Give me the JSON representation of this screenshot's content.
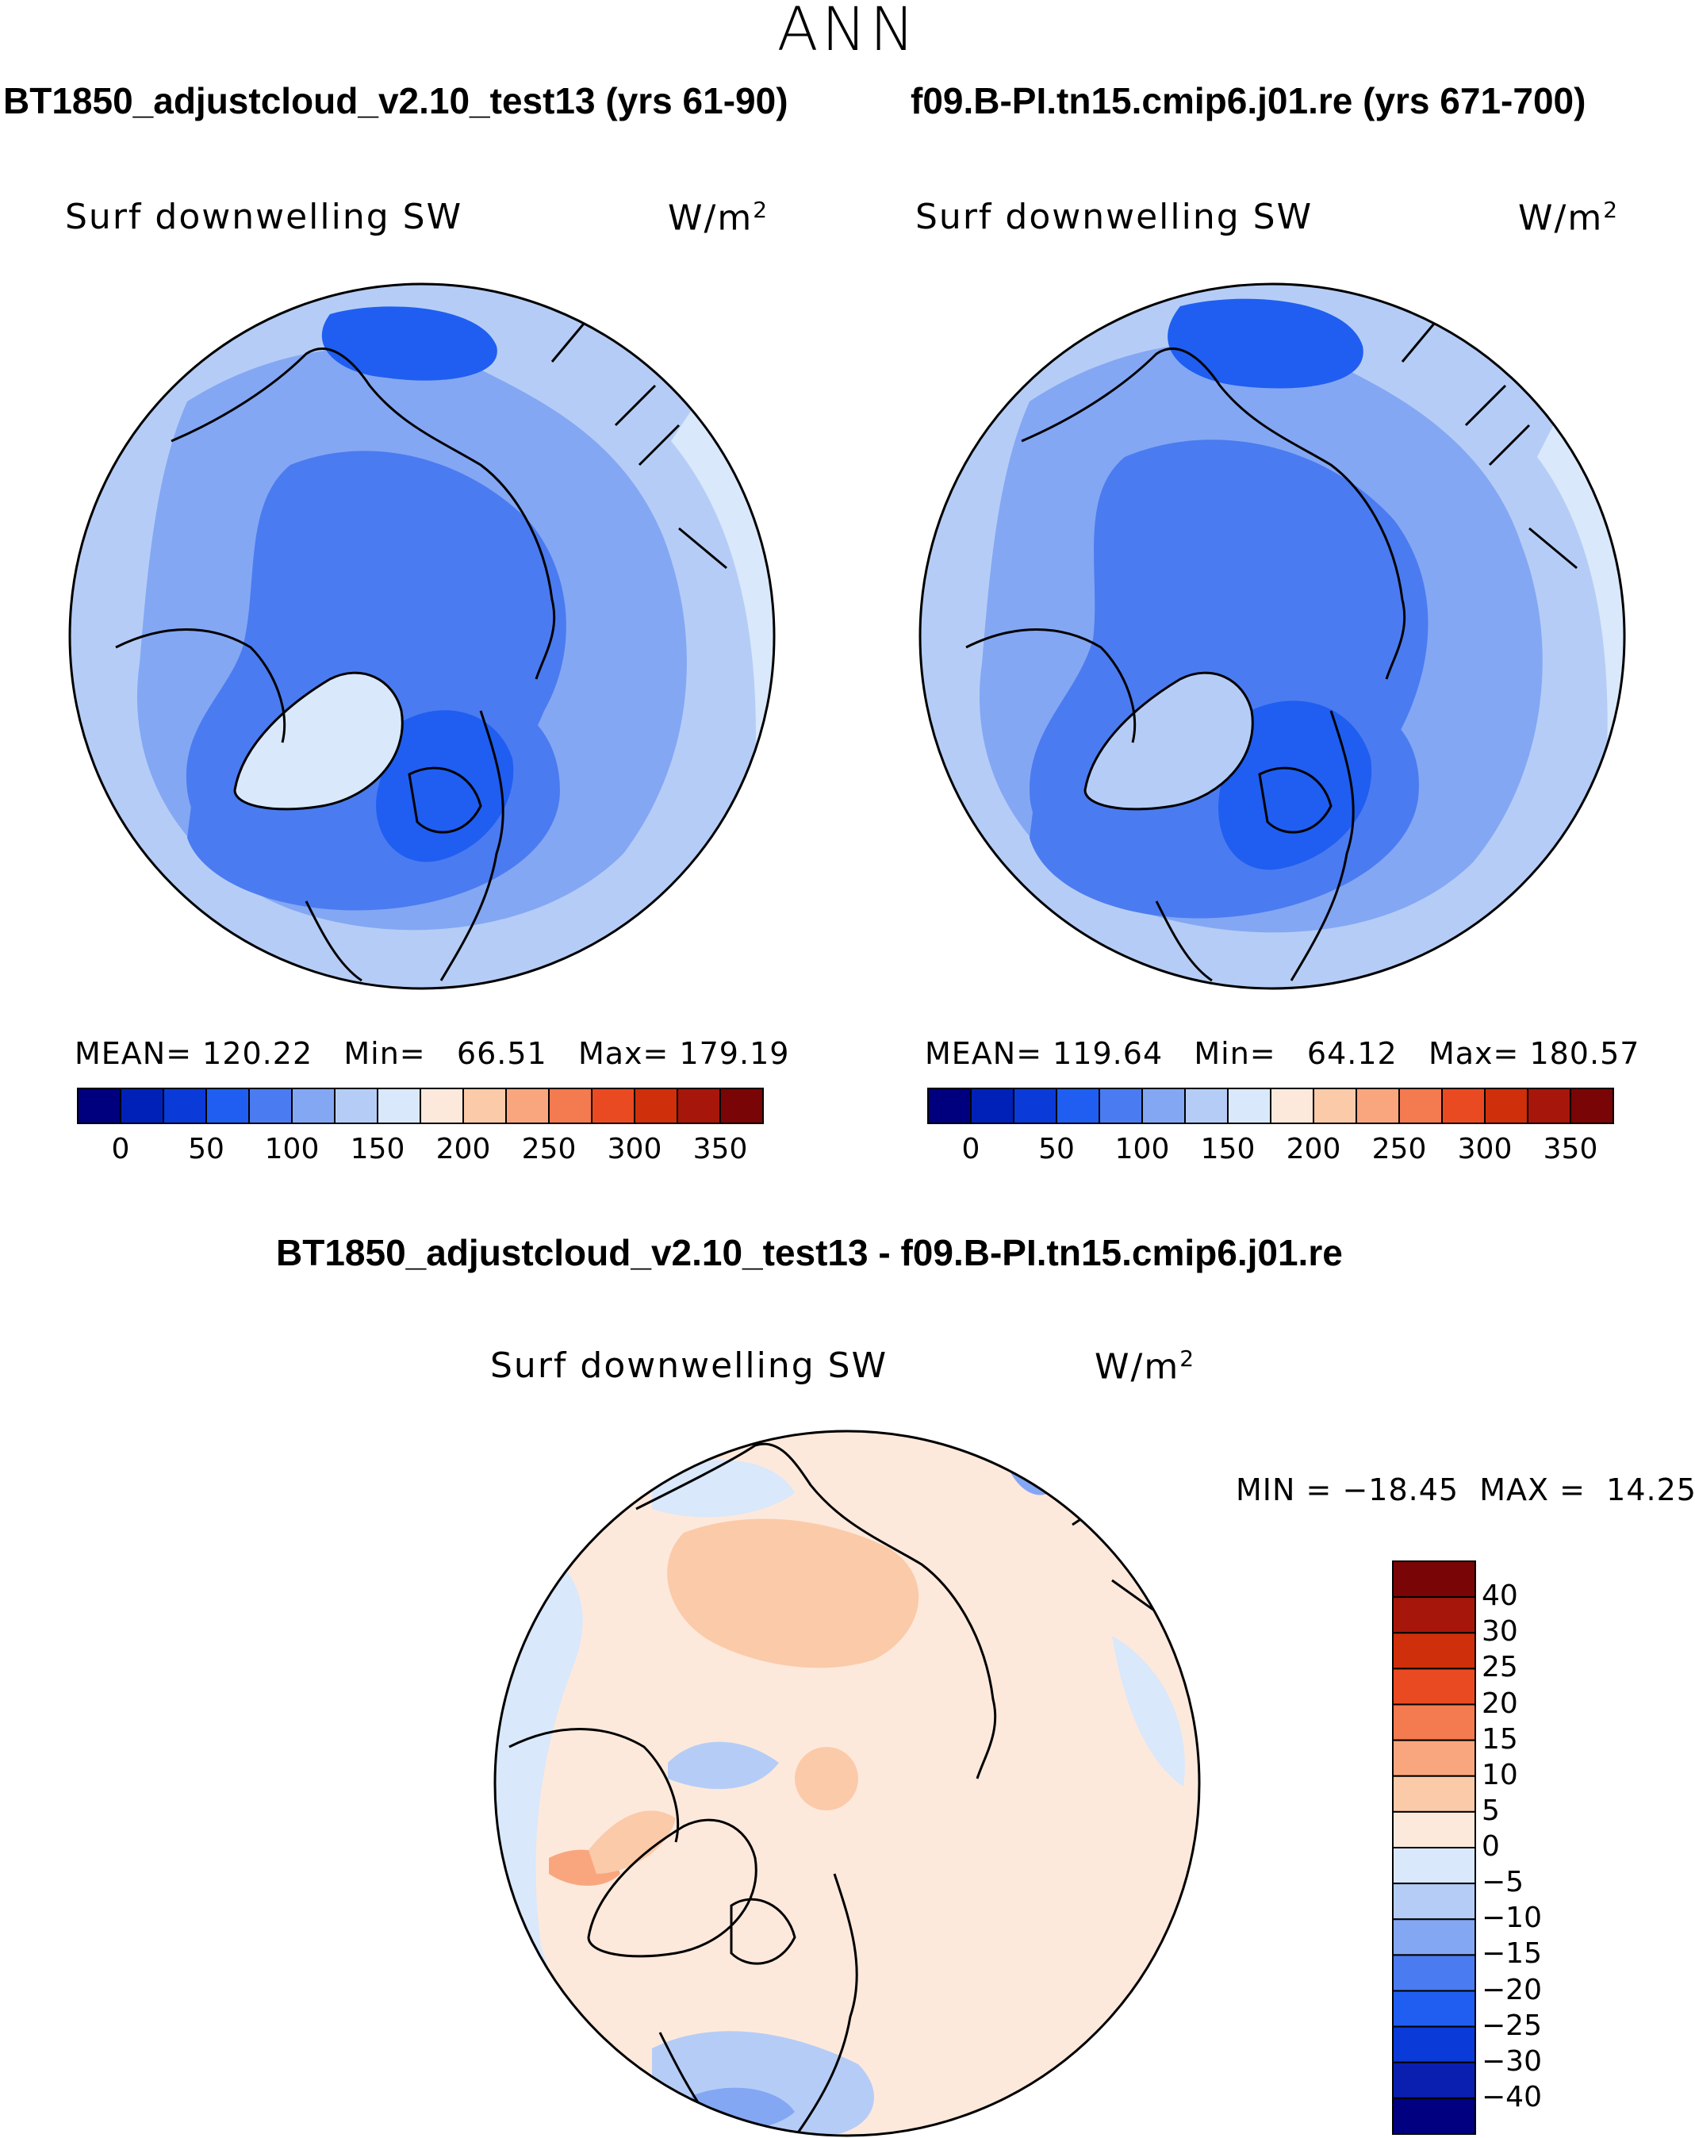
{
  "figure": {
    "season": "ANN"
  },
  "panels": [
    {
      "case_title": "BT1850_adjustcloud_v2.10_test13 (yrs 61-90)",
      "variable": "Surf downwelling SW",
      "units_base": "W/m",
      "units_exp": "2",
      "mean_label": "MEAN=",
      "mean_value": "120.22",
      "min_label": "Min=",
      "min_value": "66.51",
      "max_label": "Max=",
      "max_value": "179.19"
    },
    {
      "case_title": "f09.B-PI.tn15.cmip6.j01.re (yrs 671-700)",
      "variable": "Surf downwelling SW",
      "units_base": "W/m",
      "units_exp": "2",
      "mean_label": "MEAN=",
      "mean_value": "119.64",
      "min_label": "Min=",
      "min_value": "64.12",
      "max_label": "Max=",
      "max_value": "180.57"
    }
  ],
  "diff_panel": {
    "title": "BT1850_adjustcloud_v2.10_test13 - f09.B-PI.tn15.cmip6.j01.re",
    "variable": "Surf downwelling SW",
    "units_base": "W/m",
    "units_exp": "2",
    "min_label": "MIN =",
    "min_value": "−18.45",
    "max_label": "MAX =",
    "max_value": "14.25"
  },
  "colorbars": {
    "absolute": {
      "colors": [
        "#00007f",
        "#0021b8",
        "#0a3ad8",
        "#1f5ef0",
        "#4b7bf0",
        "#84a7f4",
        "#b5cdf6",
        "#d9e8fb",
        "#fde9dc",
        "#fbcaa9",
        "#f9a67f",
        "#f47a4f",
        "#ea4a22",
        "#cf2f0a",
        "#a7160a",
        "#7a0506"
      ],
      "tick_labels": [
        "0",
        "50",
        "100",
        "150",
        "200",
        "250",
        "300",
        "350"
      ]
    },
    "difference": {
      "colors": [
        "#000080",
        "#0a1fb0",
        "#0a3ad8",
        "#1f5ef0",
        "#4b7bf0",
        "#84a7f4",
        "#b5cdf6",
        "#d9e8fb",
        "#fde9dc",
        "#fbcaa9",
        "#f9a67f",
        "#f47a4f",
        "#ea4a22",
        "#cf2f0a",
        "#a7160a",
        "#7a0506"
      ],
      "tick_labels": [
        "40",
        "30",
        "25",
        "20",
        "15",
        "10",
        "5",
        "0",
        "−5",
        "−10",
        "−15",
        "−20",
        "−25",
        "−30",
        "−40"
      ]
    }
  },
  "map_fill_colors": {
    "panel_base": "#4b7bf0",
    "panel_light": "#84a7f4",
    "panel_lighter": "#b5cdf6",
    "panel_lightest": "#d9e8fb",
    "panel_dark": "#1f5ef0",
    "diff_pos": "#fde9dc",
    "diff_pos2": "#fbcaa9",
    "diff_pos3": "#f9a67f",
    "diff_neg": "#d9e8fb",
    "diff_neg2": "#b5cdf6",
    "diff_neg3": "#84a7f4",
    "coast": "#000000"
  }
}
